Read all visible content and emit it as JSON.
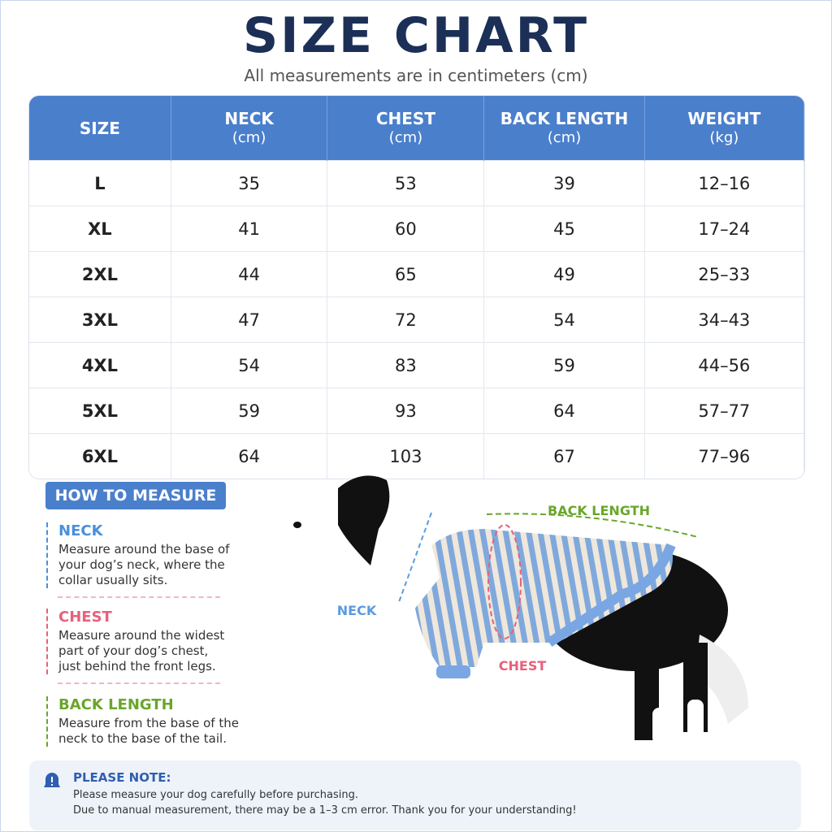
{
  "header": {
    "title": "SIZE CHART",
    "subtitle": "All measurements are in centimeters (cm)"
  },
  "table": {
    "columns": [
      {
        "label": "SIZE"
      },
      {
        "label": "NECK",
        "unit": "(cm)"
      },
      {
        "label": "CHEST",
        "unit": "(cm)"
      },
      {
        "label": "BACK LENGTH",
        "unit": "(cm)"
      },
      {
        "label": "WEIGHT",
        "unit": "(kg)"
      }
    ],
    "rows": [
      [
        "L",
        "35",
        "53",
        "39",
        "12–16"
      ],
      [
        "XL",
        "41",
        "60",
        "45",
        "17–24"
      ],
      [
        "2XL",
        "44",
        "65",
        "49",
        "25–33"
      ],
      [
        "3XL",
        "47",
        "72",
        "54",
        "34–43"
      ],
      [
        "4XL",
        "54",
        "83",
        "59",
        "44–56"
      ],
      [
        "5XL",
        "59",
        "93",
        "64",
        "57–77"
      ],
      [
        "6XL",
        "64",
        "103",
        "67",
        "77–96"
      ]
    ]
  },
  "how_to_measure": {
    "title": "HOW TO MEASURE",
    "items": [
      {
        "name": "NECK",
        "lines": [
          "Measure around the base of",
          "your dog’s neck, where the",
          "collar usually sits."
        ]
      },
      {
        "name": "CHEST",
        "lines": [
          "Measure around the widest",
          "part of your dog’s chest,",
          "just behind the front legs."
        ]
      },
      {
        "name": "BACK LENGTH",
        "lines": [
          "Measure from the base of the",
          "neck to the base of the tail."
        ]
      }
    ]
  },
  "figure": {
    "labels": [
      "NECK",
      "CHEST",
      "BACK LENGTH"
    ]
  },
  "note": {
    "title": "PLEASE NOTE:",
    "lines": [
      "Please measure your dog carefully before purchasing.",
      "Due to manual measurement, there may be a 1–3 cm error. Thank you for your understanding!"
    ]
  }
}
